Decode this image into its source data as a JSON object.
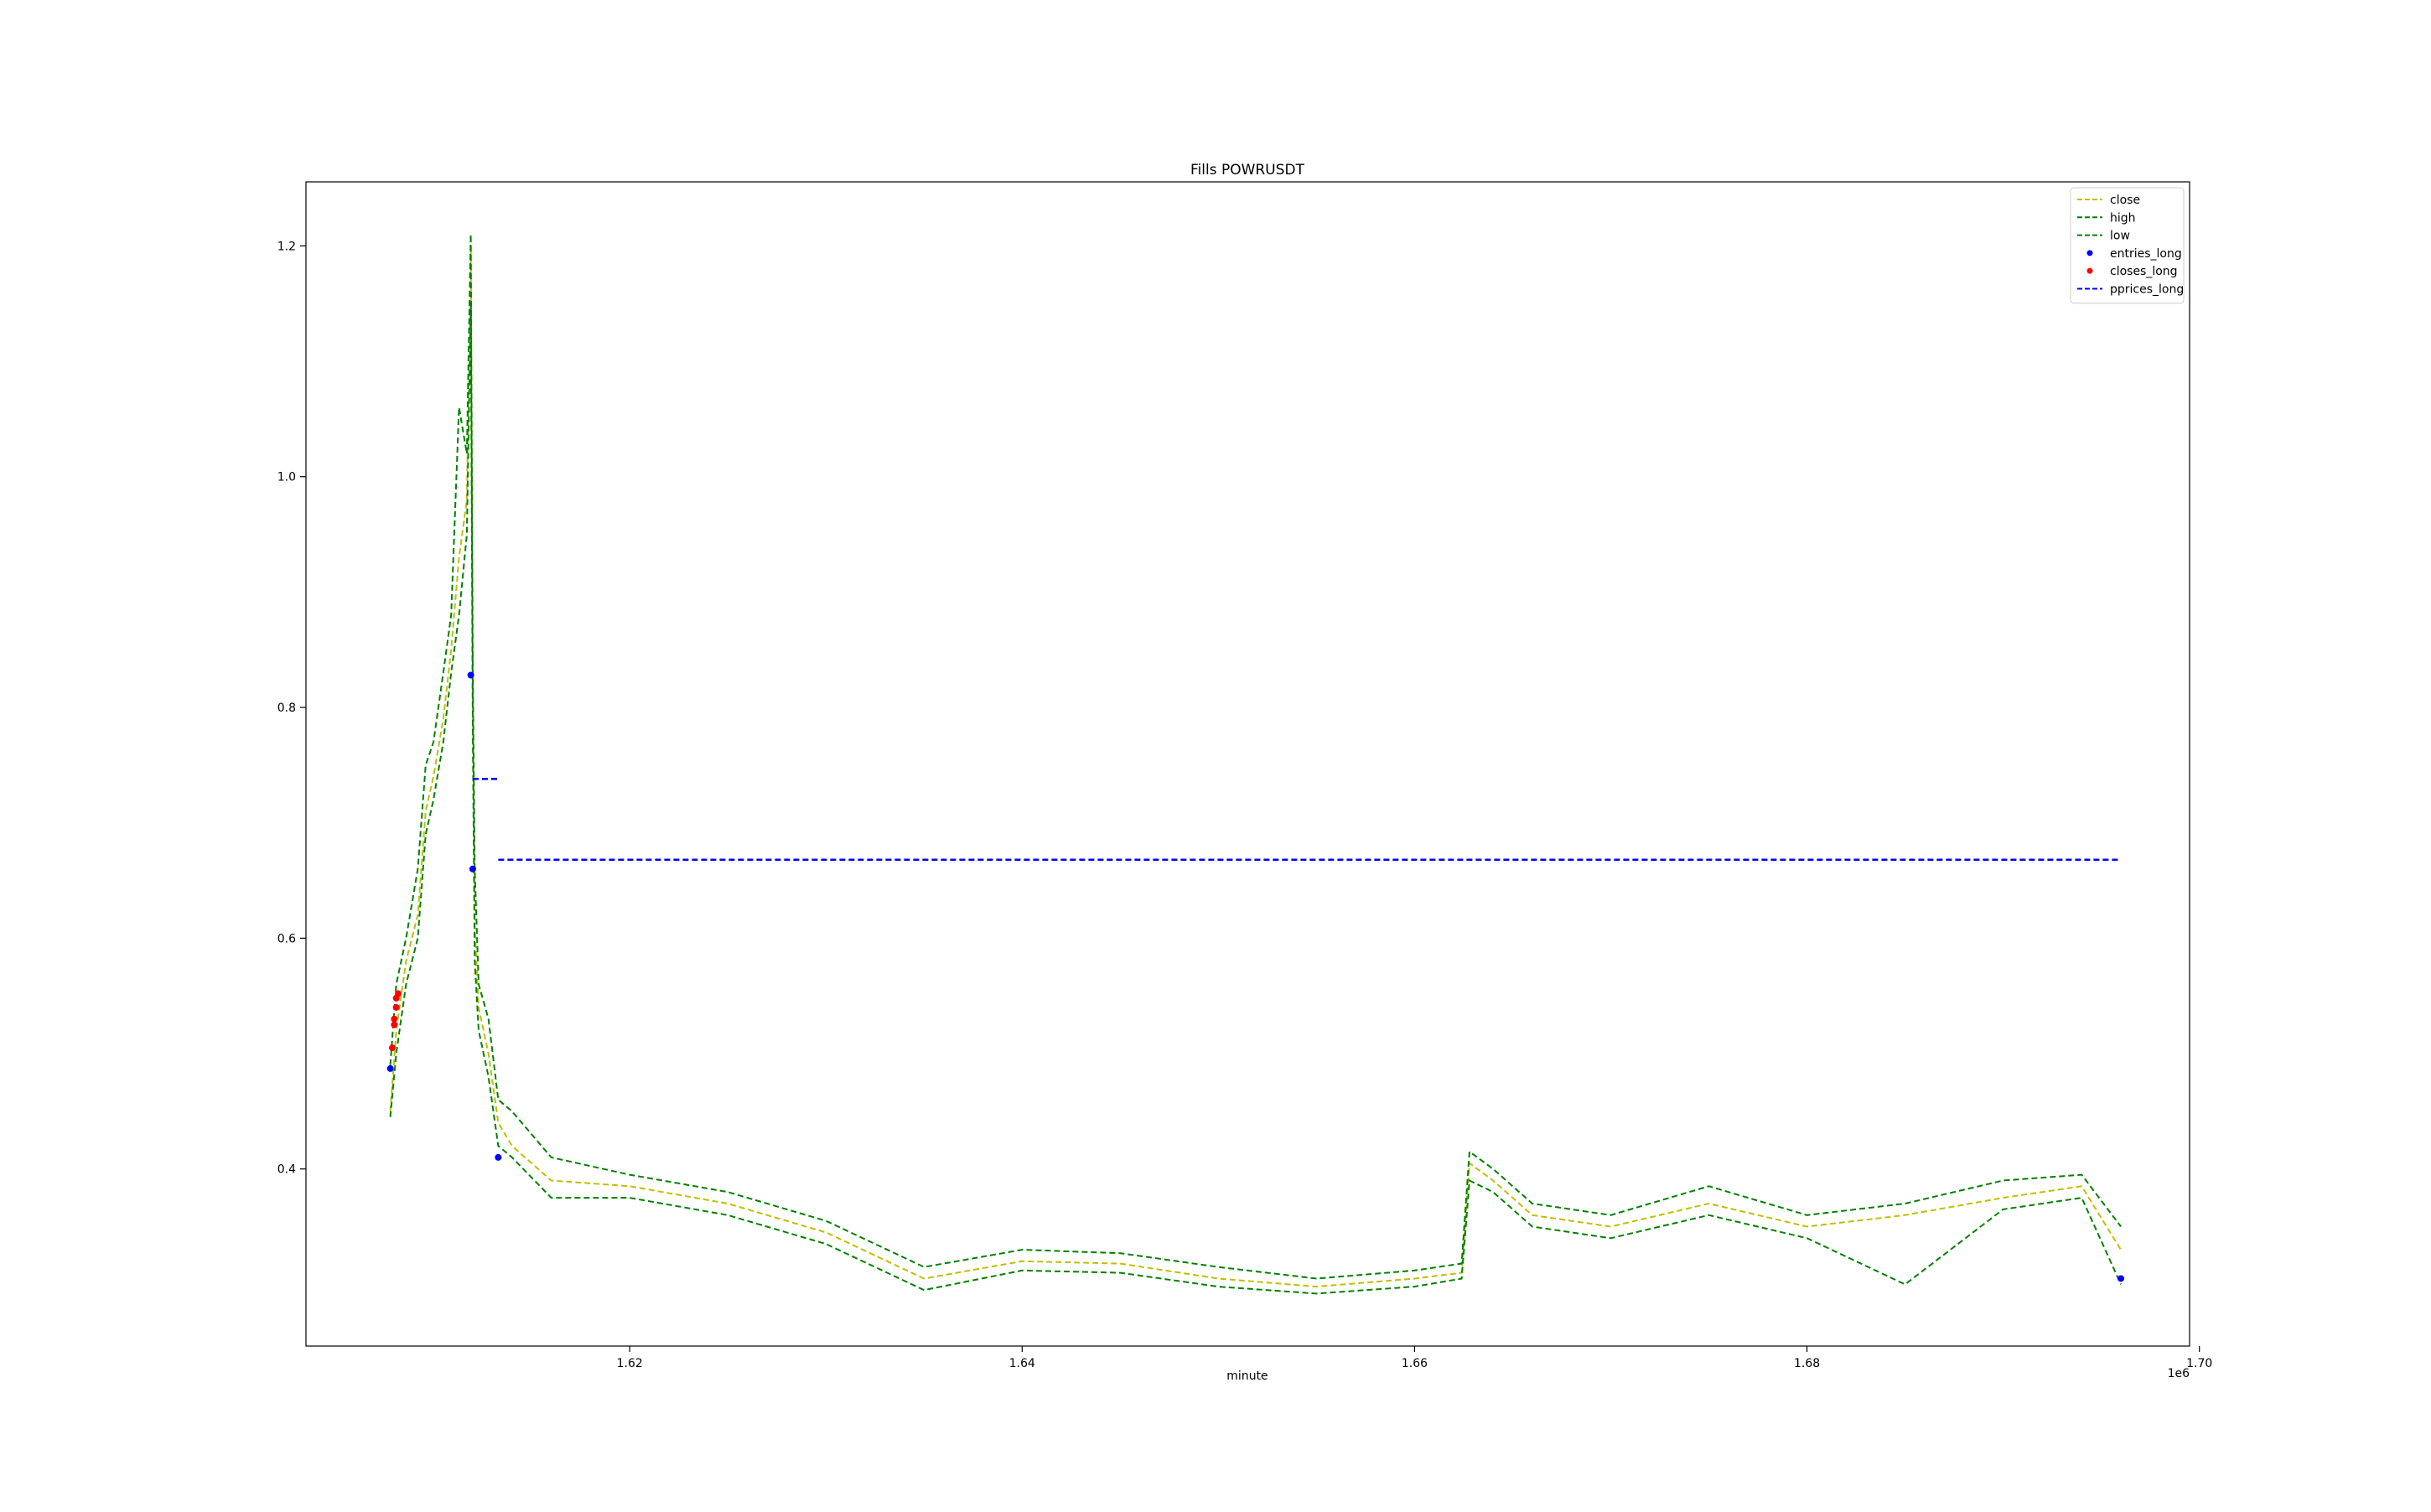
{
  "chart_data": {
    "type": "line",
    "title": "Fills POWRUSDT",
    "xlabel": "minute",
    "ylabel": "",
    "x_offset_label": "1e6",
    "xlim": [
      1.6035,
      1.6995
    ],
    "ylim": [
      0.2465,
      1.2555
    ],
    "xticks": [
      1.62,
      1.64,
      1.66,
      1.68,
      1.7
    ],
    "xtick_labels": [
      "1.62",
      "1.64",
      "1.66",
      "1.68",
      "1.70"
    ],
    "yticks": [
      0.4,
      0.6,
      0.8,
      1.0,
      1.2
    ],
    "ytick_labels": [
      "0.4",
      "0.6",
      "0.8",
      "1.0",
      "1.2"
    ],
    "grid": false,
    "legend_position": "top-right",
    "series": [
      {
        "name": "close",
        "style": "dashed",
        "color": "#bfbf00",
        "points": [
          [
            1.6078,
            0.45
          ],
          [
            1.6081,
            0.52
          ],
          [
            1.6086,
            0.58
          ],
          [
            1.6092,
            0.62
          ],
          [
            1.6096,
            0.71
          ],
          [
            1.61,
            0.74
          ],
          [
            1.6105,
            0.79
          ],
          [
            1.6109,
            0.85
          ],
          [
            1.6113,
            0.93
          ],
          [
            1.6117,
            0.98
          ],
          [
            1.6119,
            1.2
          ],
          [
            1.612,
            0.8
          ],
          [
            1.6121,
            0.61
          ],
          [
            1.6123,
            0.54
          ],
          [
            1.6128,
            0.5
          ],
          [
            1.6133,
            0.44
          ],
          [
            1.614,
            0.42
          ],
          [
            1.616,
            0.39
          ],
          [
            1.62,
            0.385
          ],
          [
            1.625,
            0.37
          ],
          [
            1.63,
            0.345
          ],
          [
            1.635,
            0.305
          ],
          [
            1.64,
            0.32
          ],
          [
            1.645,
            0.318
          ],
          [
            1.65,
            0.305
          ],
          [
            1.655,
            0.298
          ],
          [
            1.66,
            0.305
          ],
          [
            1.6624,
            0.31
          ],
          [
            1.6628,
            0.405
          ],
          [
            1.664,
            0.39
          ],
          [
            1.666,
            0.36
          ],
          [
            1.67,
            0.35
          ],
          [
            1.675,
            0.37
          ],
          [
            1.68,
            0.35
          ],
          [
            1.685,
            0.36
          ],
          [
            1.69,
            0.375
          ],
          [
            1.694,
            0.385
          ],
          [
            1.696,
            0.33
          ]
        ]
      },
      {
        "name": "high",
        "style": "dashed",
        "color": "#008000",
        "points": [
          [
            1.6078,
            0.49
          ],
          [
            1.6081,
            0.56
          ],
          [
            1.6086,
            0.6
          ],
          [
            1.6092,
            0.66
          ],
          [
            1.6096,
            0.75
          ],
          [
            1.61,
            0.77
          ],
          [
            1.6105,
            0.83
          ],
          [
            1.6109,
            0.88
          ],
          [
            1.6113,
            1.06
          ],
          [
            1.6117,
            1.02
          ],
          [
            1.6119,
            1.21
          ],
          [
            1.612,
            0.83
          ],
          [
            1.6121,
            0.66
          ],
          [
            1.6123,
            0.56
          ],
          [
            1.6128,
            0.53
          ],
          [
            1.6133,
            0.46
          ],
          [
            1.614,
            0.45
          ],
          [
            1.616,
            0.41
          ],
          [
            1.62,
            0.395
          ],
          [
            1.625,
            0.38
          ],
          [
            1.63,
            0.355
          ],
          [
            1.635,
            0.315
          ],
          [
            1.64,
            0.33
          ],
          [
            1.645,
            0.327
          ],
          [
            1.65,
            0.315
          ],
          [
            1.655,
            0.305
          ],
          [
            1.66,
            0.312
          ],
          [
            1.6624,
            0.318
          ],
          [
            1.6628,
            0.415
          ],
          [
            1.664,
            0.4
          ],
          [
            1.666,
            0.37
          ],
          [
            1.67,
            0.36
          ],
          [
            1.675,
            0.385
          ],
          [
            1.68,
            0.36
          ],
          [
            1.685,
            0.37
          ],
          [
            1.69,
            0.39
          ],
          [
            1.694,
            0.395
          ],
          [
            1.696,
            0.35
          ]
        ]
      },
      {
        "name": "low",
        "style": "dashed",
        "color": "#008000",
        "points": [
          [
            1.6078,
            0.445
          ],
          [
            1.6081,
            0.5
          ],
          [
            1.6086,
            0.56
          ],
          [
            1.6092,
            0.6
          ],
          [
            1.6096,
            0.69
          ],
          [
            1.61,
            0.72
          ],
          [
            1.6105,
            0.77
          ],
          [
            1.6109,
            0.83
          ],
          [
            1.6113,
            0.88
          ],
          [
            1.6117,
            0.95
          ],
          [
            1.6119,
            1.15
          ],
          [
            1.612,
            0.78
          ],
          [
            1.6121,
            0.58
          ],
          [
            1.6123,
            0.52
          ],
          [
            1.6128,
            0.48
          ],
          [
            1.6133,
            0.42
          ],
          [
            1.614,
            0.41
          ],
          [
            1.616,
            0.375
          ],
          [
            1.62,
            0.375
          ],
          [
            1.625,
            0.36
          ],
          [
            1.63,
            0.335
          ],
          [
            1.635,
            0.295
          ],
          [
            1.64,
            0.312
          ],
          [
            1.645,
            0.31
          ],
          [
            1.65,
            0.298
          ],
          [
            1.655,
            0.292
          ],
          [
            1.66,
            0.298
          ],
          [
            1.6624,
            0.305
          ],
          [
            1.6628,
            0.39
          ],
          [
            1.664,
            0.38
          ],
          [
            1.666,
            0.35
          ],
          [
            1.67,
            0.34
          ],
          [
            1.675,
            0.36
          ],
          [
            1.68,
            0.34
          ],
          [
            1.685,
            0.3
          ],
          [
            1.69,
            0.365
          ],
          [
            1.694,
            0.375
          ],
          [
            1.696,
            0.3
          ]
        ]
      },
      {
        "name": "entries_long",
        "style": "markers",
        "color": "#0000ff",
        "points": [
          [
            1.6078,
            0.487
          ],
          [
            1.6119,
            0.828
          ],
          [
            1.612,
            0.66
          ],
          [
            1.6133,
            0.41
          ],
          [
            1.696,
            0.305
          ]
        ]
      },
      {
        "name": "closes_long",
        "style": "markers",
        "color": "#ff0000",
        "points": [
          [
            1.6079,
            0.505
          ],
          [
            1.608,
            0.525
          ],
          [
            1.608,
            0.53
          ],
          [
            1.6081,
            0.54
          ],
          [
            1.6081,
            0.548
          ],
          [
            1.6082,
            0.552
          ]
        ]
      },
      {
        "name": "pprices_long",
        "style": "dashed",
        "color": "#0000ff",
        "points": [
          [
            1.612,
            0.738
          ],
          [
            1.6133,
            0.738
          ],
          null,
          [
            1.6133,
            0.668
          ],
          [
            1.696,
            0.668
          ]
        ]
      }
    ]
  }
}
